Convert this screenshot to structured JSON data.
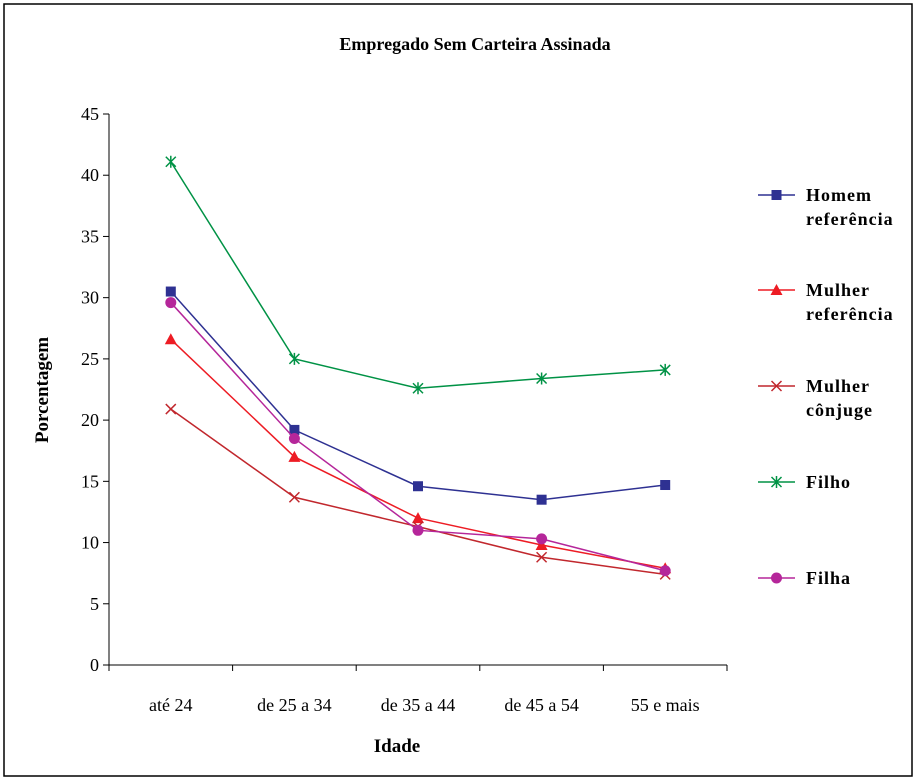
{
  "chart_data": {
    "type": "line",
    "title": "Empregado Sem Carteira Assinada",
    "xlabel": "Idade",
    "ylabel": "Porcentagem",
    "categories": [
      "até 24",
      "de 25 a 34",
      "de 35 a 44",
      "de 45 a 54",
      "55 e mais"
    ],
    "ylim": [
      0,
      45
    ],
    "yticks": [
      0,
      5,
      10,
      15,
      20,
      25,
      30,
      35,
      40,
      45
    ],
    "grid": false,
    "legend_position": "right",
    "series": [
      {
        "name": "Homem referência",
        "legend_lines": [
          "Homem",
          "referência"
        ],
        "color": "#2E3192",
        "marker": "square",
        "values": [
          30.5,
          19.2,
          14.6,
          13.5,
          14.7
        ]
      },
      {
        "name": "Mulher referência",
        "legend_lines": [
          "Mulher",
          "referência"
        ],
        "color": "#ED1C24",
        "marker": "triangle",
        "values": [
          26.6,
          17.0,
          12.0,
          9.8,
          7.9
        ]
      },
      {
        "name": "Mulher cônjuge",
        "legend_lines": [
          "Mulher",
          "cônjuge"
        ],
        "color": "#C1272D",
        "marker": "x",
        "values": [
          20.9,
          13.7,
          11.3,
          8.8,
          7.4
        ]
      },
      {
        "name": "Filho",
        "legend_lines": [
          "Filho"
        ],
        "color": "#009245",
        "marker": "star",
        "values": [
          41.1,
          25.0,
          22.6,
          23.4,
          24.1
        ]
      },
      {
        "name": "Filha",
        "legend_lines": [
          "Filha"
        ],
        "color": "#B5269A",
        "marker": "circle",
        "values": [
          29.6,
          18.5,
          11.0,
          10.3,
          7.7
        ]
      }
    ]
  }
}
